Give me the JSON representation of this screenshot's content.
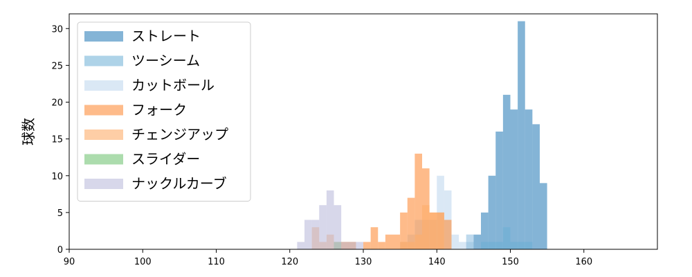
{
  "chart_data": {
    "type": "bar",
    "subtype": "overlapping-histogram",
    "title": "",
    "xlabel": "",
    "ylabel": "球数",
    "xlim": [
      90,
      170
    ],
    "ylim": [
      0,
      32
    ],
    "xticks": [
      90,
      100,
      110,
      120,
      130,
      140,
      150,
      160
    ],
    "yticks": [
      0,
      5,
      10,
      15,
      20,
      25,
      30
    ],
    "bin_width": 1,
    "grid": false,
    "legend_position": "top-left",
    "series": [
      {
        "name": "ストレート",
        "color": "#1f77b4",
        "opacity": 0.55,
        "bins": [
          [
            144,
            1
          ],
          [
            145,
            2
          ],
          [
            146,
            5
          ],
          [
            147,
            10
          ],
          [
            148,
            16
          ],
          [
            149,
            21
          ],
          [
            150,
            19
          ],
          [
            151,
            31
          ],
          [
            152,
            19
          ],
          [
            153,
            17
          ],
          [
            154,
            9
          ]
        ]
      },
      {
        "name": "ツーシーム",
        "color": "#6baed6",
        "opacity": 0.55,
        "bins": [
          [
            144,
            2
          ],
          [
            146,
            1
          ],
          [
            147,
            1
          ],
          [
            148,
            1
          ],
          [
            149,
            3
          ],
          [
            150,
            1
          ],
          [
            151,
            1
          ],
          [
            152,
            1
          ]
        ]
      },
      {
        "name": "カットボール",
        "color": "#c6dbef",
        "opacity": 0.65,
        "bins": [
          [
            135,
            1
          ],
          [
            136,
            2
          ],
          [
            137,
            4
          ],
          [
            138,
            4
          ],
          [
            139,
            4
          ],
          [
            140,
            10
          ],
          [
            141,
            8
          ],
          [
            142,
            2
          ],
          [
            143,
            1
          ],
          [
            144,
            2
          ]
        ]
      },
      {
        "name": "フォーク",
        "color": "#fd8d3c",
        "opacity": 0.6,
        "bins": [
          [
            127,
            1
          ],
          [
            128,
            1
          ],
          [
            130,
            1
          ],
          [
            131,
            3
          ],
          [
            132,
            1
          ],
          [
            133,
            2
          ],
          [
            134,
            2
          ],
          [
            135,
            5
          ],
          [
            136,
            7
          ],
          [
            137,
            13
          ],
          [
            138,
            11
          ],
          [
            139,
            5
          ],
          [
            140,
            5
          ],
          [
            141,
            4
          ]
        ]
      },
      {
        "name": "チェンジアップ",
        "color": "#fdae6b",
        "opacity": 0.6,
        "bins": [
          [
            123,
            3
          ],
          [
            124,
            1
          ],
          [
            125,
            2
          ],
          [
            126,
            1
          ],
          [
            127,
            1
          ],
          [
            128,
            1
          ],
          [
            135,
            1
          ],
          [
            136,
            1
          ],
          [
            137,
            2
          ],
          [
            138,
            6
          ],
          [
            139,
            5
          ],
          [
            140,
            5
          ]
        ]
      },
      {
        "name": "スライダー",
        "color": "#74c476",
        "opacity": 0.6,
        "bins": [
          [
            126,
            1
          ]
        ]
      },
      {
        "name": "ナックルカーブ",
        "color": "#bcbddc",
        "opacity": 0.6,
        "bins": [
          [
            121,
            1
          ],
          [
            122,
            4
          ],
          [
            123,
            4
          ],
          [
            124,
            6
          ],
          [
            125,
            8
          ],
          [
            126,
            6
          ],
          [
            127,
            1
          ],
          [
            128,
            1
          ],
          [
            129,
            1
          ]
        ]
      }
    ]
  }
}
